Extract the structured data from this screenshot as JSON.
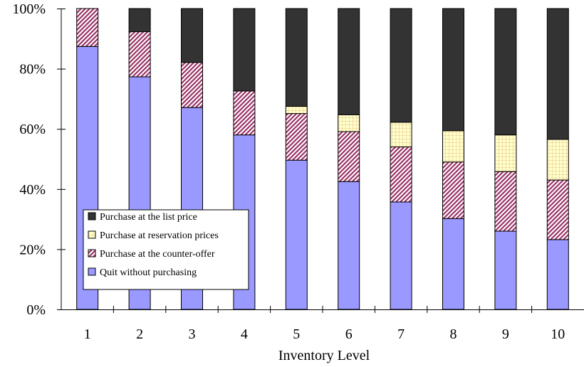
{
  "chart_data": {
    "type": "bar",
    "stacked": true,
    "percent": true,
    "title": "",
    "xlabel": "Inventory Level",
    "ylabel": "",
    "ylim": [
      0,
      100
    ],
    "yticks": [
      0,
      20,
      40,
      60,
      80,
      100
    ],
    "ytick_labels": [
      "0%",
      "20%",
      "40%",
      "60%",
      "80%",
      "100%"
    ],
    "categories": [
      "1",
      "2",
      "3",
      "4",
      "5",
      "6",
      "7",
      "8",
      "9",
      "10"
    ],
    "legend_position": "bottom-left",
    "grid": false,
    "series": [
      {
        "name": "Quit without purchasing",
        "color": "#9999ff",
        "pattern": "solid",
        "values": [
          87.4,
          77.3,
          67.1,
          58.0,
          49.6,
          42.5,
          35.7,
          30.2,
          26.0,
          23.2
        ]
      },
      {
        "name": "Purchase at the counter-offer",
        "color": "#993366",
        "pattern": "diagonal",
        "values": [
          12.6,
          15.0,
          15.0,
          14.6,
          15.5,
          16.6,
          18.3,
          18.8,
          19.8,
          19.8
        ]
      },
      {
        "name": "Purchase at reservation prices",
        "color": "#ffffcc",
        "pattern": "grid",
        "values": [
          0.0,
          0.0,
          0.0,
          0.0,
          2.4,
          5.6,
          8.2,
          10.4,
          12.2,
          13.5
        ]
      },
      {
        "name": "Purchase at the list price",
        "color": "#333333",
        "pattern": "solid",
        "values": [
          0.0,
          7.7,
          17.9,
          27.4,
          32.5,
          35.3,
          37.8,
          40.6,
          42.0,
          43.5
        ]
      }
    ],
    "legend_order": [
      "Purchase at the list price",
      "Purchase at reservation prices",
      "Purchase at the counter-offer",
      "Quit without purchasing"
    ]
  }
}
